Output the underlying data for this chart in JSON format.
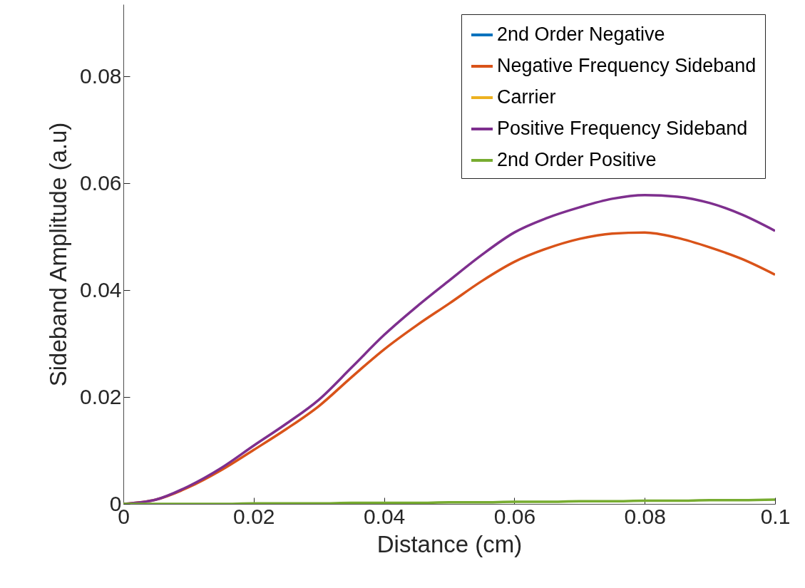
{
  "chart_data": {
    "type": "line",
    "xlabel": "Distance (cm)",
    "ylabel": "Sideband Amplitude (a.u)",
    "x": [
      0,
      0.005,
      0.01,
      0.015,
      0.02,
      0.025,
      0.03,
      0.035,
      0.04,
      0.045,
      0.05,
      0.055,
      0.06,
      0.065,
      0.07,
      0.075,
      0.08,
      0.085,
      0.09,
      0.095,
      0.1
    ],
    "series": [
      {
        "name": "2nd Order Negative",
        "color": "#0072bd",
        "values": [
          null,
          null,
          null,
          null,
          null,
          null,
          null,
          null,
          null,
          null,
          null,
          null,
          null,
          null,
          null,
          null,
          null,
          null,
          null,
          null,
          null
        ]
      },
      {
        "name": "Negative Frequency Sideband",
        "color": "#d95319",
        "values": [
          0,
          0.0008,
          0.0031,
          0.0063,
          0.0101,
          0.014,
          0.0183,
          0.0237,
          0.0289,
          0.0334,
          0.0375,
          0.0417,
          0.0453,
          0.0478,
          0.0496,
          0.0506,
          0.0508,
          0.0498,
          0.048,
          0.0458,
          0.0429
        ]
      },
      {
        "name": "Carrier",
        "color": "#edb120",
        "values": [
          null,
          null,
          null,
          null,
          null,
          null,
          null,
          null,
          null,
          null,
          null,
          null,
          null,
          null,
          null,
          null,
          null,
          null,
          null,
          null,
          null
        ]
      },
      {
        "name": "Positive Frequency Sideband",
        "color": "#7e2f8e",
        "values": [
          0,
          0.0008,
          0.0033,
          0.0067,
          0.0109,
          0.015,
          0.0195,
          0.0255,
          0.0316,
          0.0369,
          0.0418,
          0.0466,
          0.0508,
          0.0535,
          0.0555,
          0.0571,
          0.0578,
          0.0575,
          0.0563,
          0.0541,
          0.0511
        ]
      },
      {
        "name": "2nd Order Positive",
        "color": "#77ac30",
        "values": [
          0,
          0,
          0,
          0,
          0.0001,
          0.0001,
          0.0001,
          0.0002,
          0.0002,
          0.0002,
          0.0003,
          0.0003,
          0.0004,
          0.0004,
          0.0005,
          0.0005,
          0.0006,
          0.0006,
          0.0007,
          0.0007,
          0.0008
        ]
      }
    ],
    "xlim": [
      0,
      0.1
    ],
    "ylim": [
      0,
      0.0935
    ],
    "xticks": [
      0,
      0.02,
      0.04,
      0.06,
      0.08,
      0.1
    ],
    "yticks": [
      0,
      0.02,
      0.04,
      0.06,
      0.08
    ],
    "grid": false,
    "legend": "top right",
    "marker": "none",
    "line_style": "solid"
  }
}
